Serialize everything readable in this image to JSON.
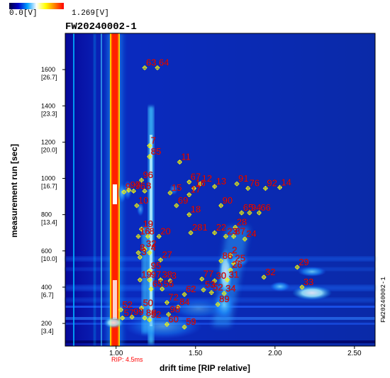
{
  "colorbar": {
    "min_label": "0.0[V]",
    "max_label": "1.269[V]",
    "colors": [
      "#000040",
      "#0000c8",
      "#00a0ff",
      "#ffffff",
      "#ffff00",
      "#ff8000",
      "#ff0000"
    ]
  },
  "chart_data": {
    "type": "heatmap",
    "title": "FW20240002-1",
    "xlabel": "drift time [RIP relative]",
    "ylabel": "measurement run [sec]",
    "rip_annotation": "RIP: 4.5ms",
    "watermark": "FW20240002-1",
    "xlim": [
      0.68,
      2.63
    ],
    "ylim": [
      75,
      1800
    ],
    "x_ticks": [
      {
        "value": 1.0,
        "label": "1.00"
      },
      {
        "value": 1.5,
        "label": "1.50"
      },
      {
        "value": 2.0,
        "label": "2.00"
      },
      {
        "value": 2.5,
        "label": "2.50"
      }
    ],
    "y_ticks": [
      {
        "value": 200,
        "label": "200",
        "sub": "[3.4]"
      },
      {
        "value": 400,
        "label": "400",
        "sub": "[6.7]"
      },
      {
        "value": 600,
        "label": "600",
        "sub": "[10.0]"
      },
      {
        "value": 800,
        "label": "800",
        "sub": "[13.4]"
      },
      {
        "value": 1000,
        "label": "1000",
        "sub": "[16.7]"
      },
      {
        "value": 1200,
        "label": "1200",
        "sub": "[20.0]"
      },
      {
        "value": 1400,
        "label": "1400",
        "sub": "[23.3]"
      },
      {
        "value": 1600,
        "label": "1600",
        "sub": "[26.7]"
      }
    ],
    "peaks": [
      {
        "label": "63",
        "x": 1.18,
        "y": 1610
      },
      {
        "label": "64",
        "x": 1.26,
        "y": 1610
      },
      {
        "label": "7",
        "x": 1.21,
        "y": 1180
      },
      {
        "label": "85",
        "x": 1.21,
        "y": 1120
      },
      {
        "label": "11",
        "x": 1.4,
        "y": 1090
      },
      {
        "label": "96",
        "x": 1.16,
        "y": 990
      },
      {
        "label": "67",
        "x": 1.46,
        "y": 980
      },
      {
        "label": "12",
        "x": 1.53,
        "y": 970
      },
      {
        "label": "13",
        "x": 1.62,
        "y": 955
      },
      {
        "label": "91",
        "x": 1.76,
        "y": 970
      },
      {
        "label": "76",
        "x": 1.83,
        "y": 945
      },
      {
        "label": "92",
        "x": 1.94,
        "y": 945
      },
      {
        "label": "14",
        "x": 2.03,
        "y": 950
      },
      {
        "label": "9",
        "x": 1.05,
        "y": 925
      },
      {
        "label": "97",
        "x": 1.08,
        "y": 935
      },
      {
        "label": "96",
        "x": 1.11,
        "y": 930
      },
      {
        "label": "8",
        "x": 1.18,
        "y": 930
      },
      {
        "label": "15",
        "x": 1.34,
        "y": 920
      },
      {
        "label": "16",
        "x": 1.49,
        "y": 945
      },
      {
        "label": "17",
        "x": 1.46,
        "y": 910
      },
      {
        "label": "10",
        "x": 1.13,
        "y": 850
      },
      {
        "label": "69",
        "x": 1.38,
        "y": 850
      },
      {
        "label": "90",
        "x": 1.66,
        "y": 850
      },
      {
        "label": "18",
        "x": 1.46,
        "y": 800
      },
      {
        "label": "65",
        "x": 1.79,
        "y": 810
      },
      {
        "label": "94",
        "x": 1.84,
        "y": 810
      },
      {
        "label": "66",
        "x": 1.9,
        "y": 810
      },
      {
        "label": "19",
        "x": 1.16,
        "y": 720
      },
      {
        "label": "28",
        "x": 1.75,
        "y": 730
      },
      {
        "label": "16",
        "x": 1.14,
        "y": 680
      },
      {
        "label": "8",
        "x": 1.2,
        "y": 680
      },
      {
        "label": "20",
        "x": 1.27,
        "y": 680
      },
      {
        "label": "281",
        "x": 1.47,
        "y": 700
      },
      {
        "label": "22",
        "x": 1.62,
        "y": 700
      },
      {
        "label": "23",
        "x": 1.69,
        "y": 680
      },
      {
        "label": "87",
        "x": 1.74,
        "y": 680
      },
      {
        "label": "24",
        "x": 1.81,
        "y": 665
      },
      {
        "label": "32",
        "x": 1.18,
        "y": 610
      },
      {
        "label": "8",
        "x": 1.14,
        "y": 590
      },
      {
        "label": "4",
        "x": 1.21,
        "y": 590
      },
      {
        "label": "3",
        "x": 1.15,
        "y": 565
      },
      {
        "label": "27",
        "x": 1.28,
        "y": 550
      },
      {
        "label": "2",
        "x": 1.72,
        "y": 575
      },
      {
        "label": "86",
        "x": 1.66,
        "y": 545
      },
      {
        "label": "25",
        "x": 1.74,
        "y": 530
      },
      {
        "label": "26",
        "x": 1.72,
        "y": 495
      },
      {
        "label": "95",
        "x": 1.21,
        "y": 490
      },
      {
        "label": "29",
        "x": 2.14,
        "y": 510
      },
      {
        "label": "32",
        "x": 1.93,
        "y": 455
      },
      {
        "label": "19",
        "x": 1.15,
        "y": 440
      },
      {
        "label": "97",
        "x": 1.21,
        "y": 440
      },
      {
        "label": "38",
        "x": 1.28,
        "y": 440
      },
      {
        "label": "3",
        "x": 1.34,
        "y": 435
      },
      {
        "label": "77",
        "x": 1.54,
        "y": 445
      },
      {
        "label": "30",
        "x": 1.62,
        "y": 435
      },
      {
        "label": "31",
        "x": 1.7,
        "y": 440
      },
      {
        "label": "33",
        "x": 2.17,
        "y": 400
      },
      {
        "label": "65",
        "x": 1.22,
        "y": 390
      },
      {
        "label": "56",
        "x": 1.29,
        "y": 390
      },
      {
        "label": "53",
        "x": 1.55,
        "y": 385
      },
      {
        "label": "52",
        "x": 1.6,
        "y": 370
      },
      {
        "label": "34",
        "x": 1.68,
        "y": 365
      },
      {
        "label": "62",
        "x": 1.43,
        "y": 360
      },
      {
        "label": "72",
        "x": 1.32,
        "y": 315
      },
      {
        "label": "84",
        "x": 1.39,
        "y": 290
      },
      {
        "label": "89",
        "x": 1.64,
        "y": 305
      },
      {
        "label": "52",
        "x": 1.03,
        "y": 275
      },
      {
        "label": "50",
        "x": 1.16,
        "y": 285
      },
      {
        "label": "98",
        "x": 1.33,
        "y": 250
      },
      {
        "label": "57",
        "x": 1.04,
        "y": 230
      },
      {
        "label": "99",
        "x": 1.1,
        "y": 235
      },
      {
        "label": "88",
        "x": 1.18,
        "y": 230
      },
      {
        "label": "52",
        "x": 1.21,
        "y": 220
      },
      {
        "label": "60",
        "x": 1.32,
        "y": 195
      },
      {
        "label": "59",
        "x": 1.43,
        "y": 180
      }
    ]
  }
}
